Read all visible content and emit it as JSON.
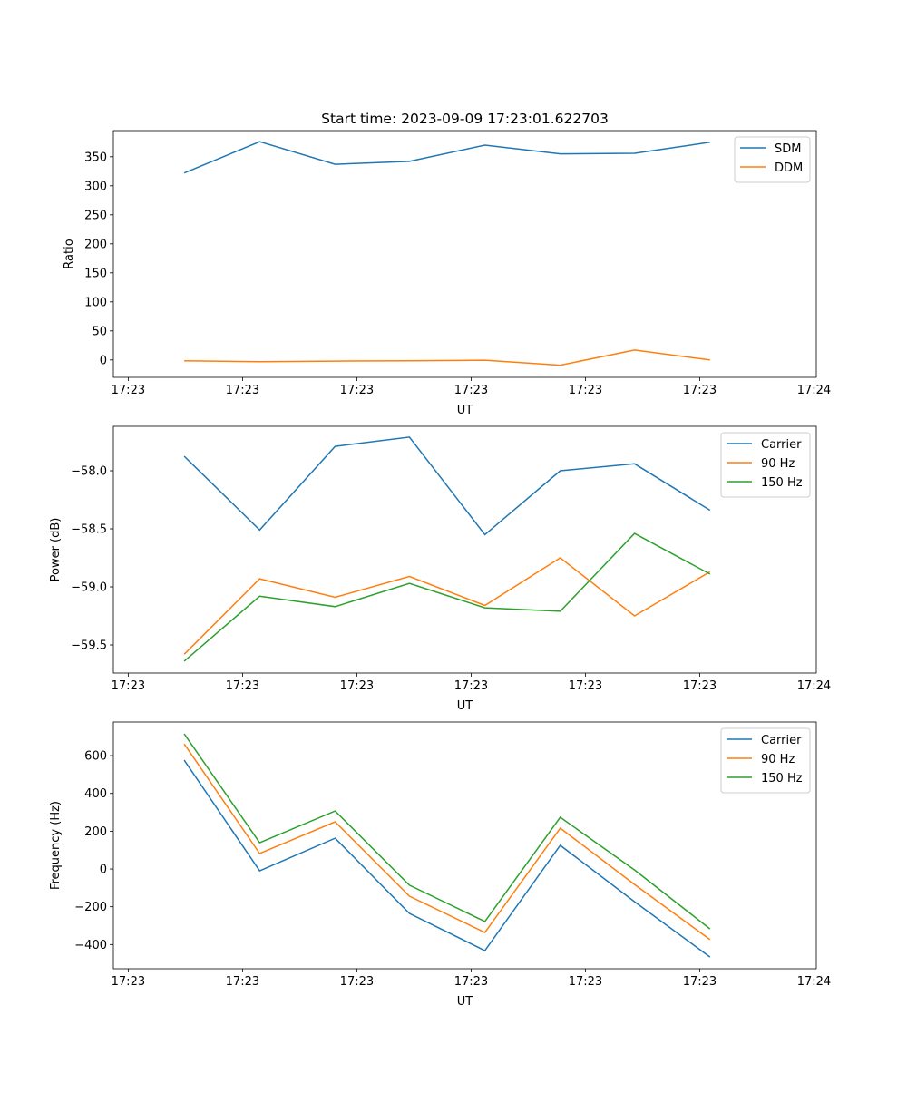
{
  "chart_data": [
    {
      "type": "line",
      "title": "Start time: 2023-09-09 17:23:01.622703",
      "xlabel": "UT",
      "ylabel": "Ratio",
      "x_unit": "seconds after first x tick",
      "x": [
        4.9,
        11.5,
        18.1,
        24.6,
        31.2,
        37.8,
        44.3,
        50.9
      ],
      "xlim": [
        -1.3,
        60.2
      ],
      "xticks": [
        0,
        10,
        20,
        30,
        40,
        50,
        60
      ],
      "xtick_labels": [
        "17:23",
        "17:23",
        "17:23",
        "17:23",
        "17:23",
        "17:23",
        "17:24"
      ],
      "ylim": [
        -30,
        395
      ],
      "yticks": [
        0,
        50,
        100,
        150,
        200,
        250,
        300,
        350
      ],
      "ytick_labels": [
        "0",
        "50",
        "100",
        "150",
        "200",
        "250",
        "300",
        "350"
      ],
      "legend_position": "top-right",
      "series": [
        {
          "name": "SDM",
          "color": "#1f77b4",
          "values": [
            322,
            376,
            337,
            342,
            370,
            355,
            356,
            375
          ]
        },
        {
          "name": "DDM",
          "color": "#ff7f0e",
          "values": [
            -1.5,
            -3,
            -2,
            -1.5,
            -0.5,
            -9,
            17,
            0
          ]
        }
      ]
    },
    {
      "type": "line",
      "xlabel": "UT",
      "ylabel": "Power (dB)",
      "x": [
        4.9,
        11.5,
        18.1,
        24.6,
        31.2,
        37.8,
        44.3,
        50.9
      ],
      "xlim": [
        -1.3,
        60.2
      ],
      "xticks": [
        0,
        10,
        20,
        30,
        40,
        50,
        60
      ],
      "xtick_labels": [
        "17:23",
        "17:23",
        "17:23",
        "17:23",
        "17:23",
        "17:23",
        "17:24"
      ],
      "ylim": [
        -59.742,
        -57.617
      ],
      "yticks": [
        -58.0,
        -58.5,
        -59.0,
        -59.5
      ],
      "ytick_labels": [
        "−58.0",
        "−58.5",
        "−59.0",
        "−59.5"
      ],
      "legend_position": "top-right",
      "series": [
        {
          "name": "Carrier",
          "color": "#1f77b4",
          "values": [
            -57.875,
            -58.51,
            -57.79,
            -57.71,
            -58.55,
            -58.0,
            -57.94,
            -58.34
          ]
        },
        {
          "name": "90 Hz",
          "color": "#ff7f0e",
          "values": [
            -59.58,
            -58.93,
            -59.09,
            -58.91,
            -59.16,
            -58.75,
            -59.25,
            -58.87
          ]
        },
        {
          "name": "150 Hz",
          "color": "#2ca02c",
          "values": [
            -59.64,
            -59.08,
            -59.17,
            -58.97,
            -59.18,
            -59.21,
            -58.54,
            -58.89
          ]
        }
      ]
    },
    {
      "type": "line",
      "xlabel": "UT",
      "ylabel": "Frequency (Hz)",
      "x": [
        4.9,
        11.5,
        18.1,
        24.6,
        31.2,
        37.8,
        44.3,
        50.9
      ],
      "xlim": [
        -1.3,
        60.2
      ],
      "xticks": [
        0,
        10,
        20,
        30,
        40,
        50,
        60
      ],
      "xtick_labels": [
        "17:23",
        "17:23",
        "17:23",
        "17:23",
        "17:23",
        "17:23",
        "17:24"
      ],
      "ylim": [
        -528,
        778
      ],
      "yticks": [
        -400,
        -200,
        0,
        200,
        400,
        600
      ],
      "ytick_labels": [
        "−400",
        "−200",
        "0",
        "200",
        "400",
        "600"
      ],
      "legend_position": "top-right",
      "series": [
        {
          "name": "Carrier",
          "color": "#1f77b4",
          "values": [
            576,
            -10,
            163,
            -235,
            -432,
            125,
            -173,
            -466
          ]
        },
        {
          "name": "90 Hz",
          "color": "#ff7f0e",
          "values": [
            662,
            82,
            250,
            -144,
            -336,
            216,
            -82,
            -374
          ]
        },
        {
          "name": "150 Hz",
          "color": "#2ca02c",
          "values": [
            715,
            139,
            307,
            -86,
            -278,
            274,
            -5,
            -317
          ]
        }
      ]
    }
  ]
}
